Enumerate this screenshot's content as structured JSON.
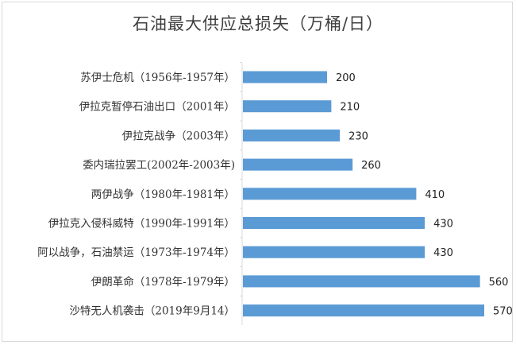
{
  "chart_data": {
    "type": "bar",
    "orientation": "horizontal",
    "title": "石油最大供应总损失（万桶/日）",
    "categories": [
      "苏伊士危机（1956年-1957年）",
      "伊拉克暂停石油出口（2001年）",
      "伊拉克战争（2003年）",
      "委内瑞拉罢工(2002年-2003年)",
      "两伊战争（1980年-1981年）",
      "伊拉克入侵科威特（1990年-1991年）",
      "阿以战争，石油禁运（1973年-1974年）",
      "伊朗革命（1978年-1979年）",
      "沙特无人机袭击（2019年9月14）"
    ],
    "values": [
      200,
      210,
      230,
      260,
      410,
      430,
      430,
      560,
      570
    ],
    "data_labels": [
      "200",
      "210",
      "230",
      "260",
      "410",
      "430",
      "430",
      "560",
      "570"
    ],
    "xlim": [
      0,
      570
    ],
    "grid": false,
    "legend": "none",
    "bar_color": "#5b9bd5"
  }
}
